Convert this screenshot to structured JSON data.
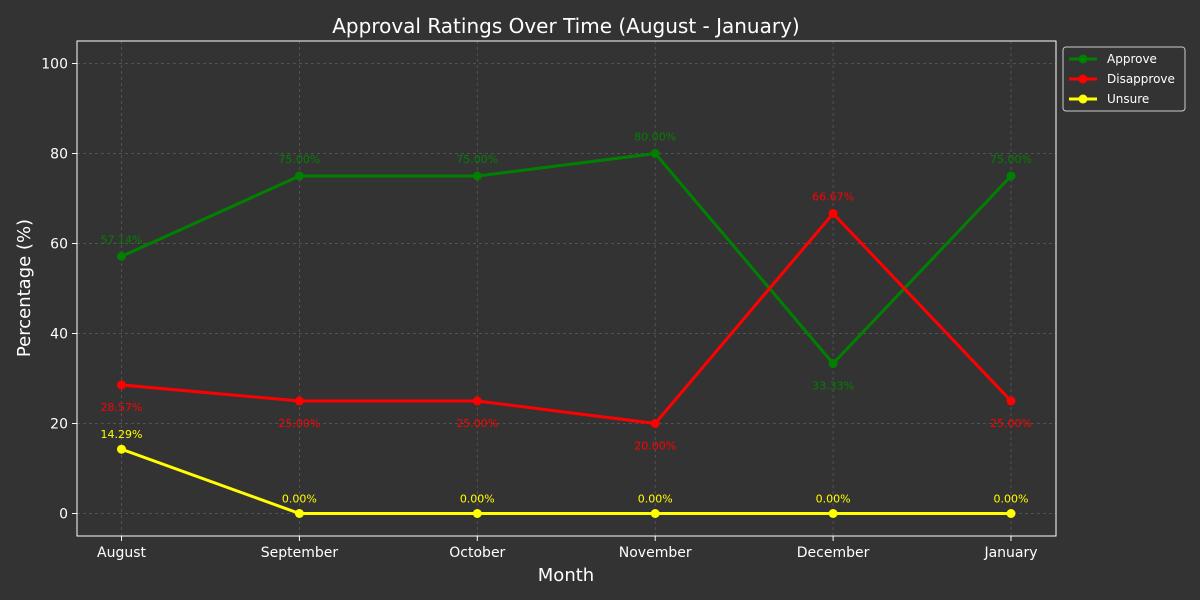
{
  "chart_data": {
    "type": "line",
    "title": "Approval Ratings Over Time (August - January)",
    "xlabel": "Month",
    "ylabel": "Percentage (%)",
    "categories": [
      "August",
      "September",
      "October",
      "November",
      "December",
      "January"
    ],
    "ylim": [
      -5,
      105
    ],
    "yticks": [
      0,
      20,
      40,
      60,
      80,
      100
    ],
    "grid": true,
    "legend_position": "top-right",
    "series": [
      {
        "name": "Approve",
        "color": "#008000",
        "values": [
          57.14,
          75.0,
          75.0,
          80.0,
          33.33,
          75.0
        ],
        "labels": [
          "57.14%",
          "75.00%",
          "75.00%",
          "80.00%",
          "33.33%",
          "75.00%"
        ]
      },
      {
        "name": "Disapprove",
        "color": "#ff0000",
        "values": [
          28.57,
          25.0,
          25.0,
          20.0,
          66.67,
          25.0
        ],
        "labels": [
          "28.57%",
          "25.00%",
          "25.00%",
          "20.00%",
          "66.67%",
          "25.00%"
        ]
      },
      {
        "name": "Unsure",
        "color": "#ffff00",
        "values": [
          14.29,
          0.0,
          0.0,
          0.0,
          0.0,
          0.0
        ],
        "labels": [
          "14.29%",
          "0.00%",
          "0.00%",
          "0.00%",
          "0.00%",
          "0.00%"
        ]
      }
    ]
  }
}
